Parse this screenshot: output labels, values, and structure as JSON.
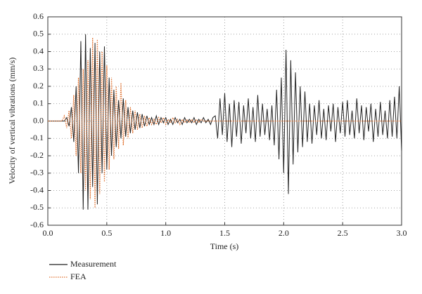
{
  "chart_data": {
    "type": "line",
    "xlabel": "Time (s)",
    "ylabel": "Velocity of vertical vibrations (mm/s)",
    "x": [
      0,
      0.02,
      0.04,
      0.06,
      0.08,
      0.1,
      0.12,
      0.14,
      0.16,
      0.18,
      0.2,
      0.22,
      0.24,
      0.26,
      0.28,
      0.3,
      0.32,
      0.34,
      0.36,
      0.38,
      0.4,
      0.42,
      0.44,
      0.46,
      0.48,
      0.5,
      0.52,
      0.54,
      0.56,
      0.58,
      0.6,
      0.62,
      0.64,
      0.66,
      0.68,
      0.7,
      0.72,
      0.74,
      0.76,
      0.78,
      0.8,
      0.82,
      0.84,
      0.86,
      0.88,
      0.9,
      0.92,
      0.94,
      0.96,
      0.98,
      1,
      1.02,
      1.04,
      1.06,
      1.08,
      1.1,
      1.12,
      1.14,
      1.16,
      1.18,
      1.2,
      1.22,
      1.24,
      1.26,
      1.28,
      1.3,
      1.32,
      1.34,
      1.36,
      1.38,
      1.4,
      1.42,
      1.44,
      1.46,
      1.48,
      1.5,
      1.52,
      1.54,
      1.56,
      1.58,
      1.6,
      1.62,
      1.64,
      1.66,
      1.68,
      1.7,
      1.72,
      1.74,
      1.76,
      1.78,
      1.8,
      1.82,
      1.84,
      1.86,
      1.88,
      1.9,
      1.92,
      1.94,
      1.96,
      1.98,
      2,
      2.02,
      2.04,
      2.06,
      2.08,
      2.1,
      2.12,
      2.14,
      2.16,
      2.18,
      2.2,
      2.22,
      2.24,
      2.26,
      2.28,
      2.3,
      2.32,
      2.34,
      2.36,
      2.38,
      2.4,
      2.42,
      2.44,
      2.46,
      2.48,
      2.5,
      2.52,
      2.54,
      2.56,
      2.58,
      2.6,
      2.62,
      2.64,
      2.66,
      2.68,
      2.7,
      2.72,
      2.74,
      2.76,
      2.78,
      2.8,
      2.82,
      2.84,
      2.86,
      2.88,
      2.9,
      2.92,
      2.94,
      2.96,
      2.98,
      3
    ],
    "series": [
      {
        "name": "Measurement",
        "color": "#222222",
        "style": "solid",
        "values": [
          0,
          0,
          0,
          0,
          0,
          0,
          0,
          0,
          0.02,
          -0.03,
          0.08,
          -0.12,
          0.2,
          -0.3,
          0.46,
          -0.51,
          0.5,
          -0.51,
          0.42,
          -0.38,
          0.45,
          -0.48,
          0.4,
          -0.3,
          0.43,
          -0.28,
          0.25,
          -0.2,
          0.18,
          -0.15,
          0.12,
          -0.1,
          0.13,
          -0.09,
          0.08,
          -0.07,
          0.06,
          -0.05,
          0.05,
          -0.04,
          0.04,
          -0.03,
          0.03,
          -0.02,
          0.02,
          -0.02,
          0.03,
          -0.02,
          0.02,
          -0.01,
          0.02,
          -0.02,
          0.01,
          -0.02,
          0.02,
          -0.01,
          0.01,
          -0.02,
          0.02,
          -0.01,
          0.01,
          -0.01,
          0.02,
          -0.02,
          0.01,
          -0.01,
          0.02,
          -0.01,
          0.01,
          -0.02,
          0.02,
          0.03,
          -0.1,
          0.13,
          -0.08,
          0.16,
          -0.12,
          0.1,
          -0.15,
          0.12,
          -0.09,
          0.11,
          -0.13,
          0.09,
          -0.07,
          0.13,
          -0.1,
          0.08,
          -0.12,
          0.15,
          -0.09,
          0.1,
          -0.08,
          0.07,
          -0.11,
          0.09,
          -0.14,
          0.18,
          -0.22,
          0.25,
          -0.3,
          0.41,
          -0.42,
          0.35,
          -0.25,
          0.28,
          -0.18,
          0.2,
          -0.15,
          0.17,
          -0.12,
          0.1,
          -0.13,
          0.09,
          -0.08,
          0.12,
          -0.1,
          0.07,
          -0.11,
          0.09,
          -0.06,
          0.1,
          -0.12,
          0.08,
          -0.07,
          0.11,
          -0.09,
          0.12,
          -0.08,
          0.06,
          -0.1,
          0.13,
          -0.07,
          0.09,
          -0.11,
          0.08,
          -0.06,
          0.1,
          -0.12,
          0.07,
          -0.09,
          0.11,
          -0.08,
          0.06,
          -0.1,
          0.12,
          -0.09,
          0.14,
          -0.1,
          0.2,
          -0.17
        ]
      },
      {
        "name": "FEA",
        "color": "#e0702e",
        "style": "dotted",
        "values": [
          0,
          0,
          0,
          0,
          0,
          0,
          0,
          0.03,
          -0.04,
          0.06,
          -0.1,
          0.15,
          -0.2,
          0.25,
          -0.3,
          0.3,
          -0.4,
          0.35,
          -0.45,
          0.48,
          -0.5,
          0.47,
          -0.42,
          0.4,
          -0.35,
          0.32,
          -0.28,
          0.25,
          -0.22,
          0.2,
          -0.16,
          0.22,
          -0.14,
          0.12,
          -0.1,
          0.08,
          -0.07,
          0.06,
          -0.05,
          0.04,
          -0.04,
          0.03,
          -0.03,
          0.02,
          -0.02,
          0.01,
          -0.02,
          0.02,
          -0.01,
          0.02,
          -0.02,
          0.01,
          -0.01,
          0.02,
          -0.01,
          0.01,
          -0.02,
          0.01,
          -0.01,
          0.01,
          -0.01,
          0.01,
          -0.01,
          0.01,
          -0.01,
          0.01,
          0,
          0,
          0,
          0,
          0,
          0,
          0,
          0,
          0,
          0,
          0,
          0,
          0,
          0,
          0,
          0,
          0,
          0,
          0,
          0,
          0,
          0,
          0,
          0,
          0,
          0,
          0,
          0,
          0,
          0,
          0,
          0,
          0,
          0,
          0,
          0,
          0,
          0,
          0,
          0,
          0,
          0,
          0,
          0,
          0,
          0,
          0,
          0,
          0,
          0,
          0,
          0,
          0,
          0,
          0,
          0,
          0,
          0,
          0,
          0,
          0,
          0,
          0,
          0,
          0,
          0,
          0,
          0,
          0,
          0,
          0,
          0,
          0,
          0,
          0,
          0,
          0,
          0,
          0,
          0,
          0,
          0,
          0,
          0,
          0
        ]
      }
    ],
    "xlim": [
      0,
      3
    ],
    "xticks": [
      {
        "value": 0,
        "label": "0.0"
      },
      0.5,
      {
        "value": 1,
        "label": "1.0"
      },
      1.5,
      {
        "value": 2,
        "label": "2.0"
      },
      2.5,
      {
        "value": 3,
        "label": "3.0"
      }
    ],
    "ylim": [
      -0.6,
      0.6
    ],
    "yticks": [
      -0.6,
      -0.5,
      -0.4,
      -0.3,
      -0.2,
      -0.1,
      {
        "value": 0,
        "label": "0.0"
      },
      0.1,
      0.2,
      0.3,
      0.4,
      0.5,
      0.6
    ],
    "grid": true,
    "legend": "bottom-left"
  }
}
